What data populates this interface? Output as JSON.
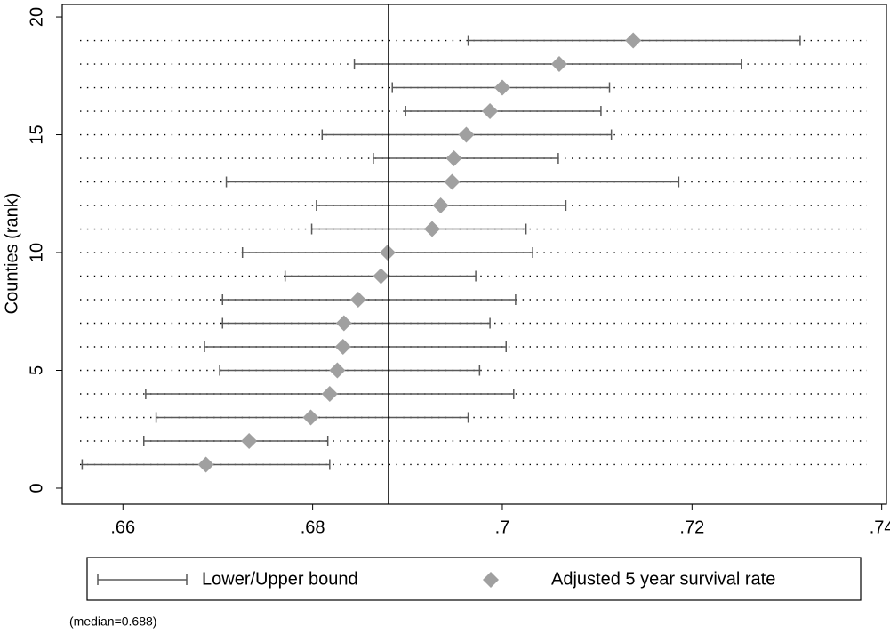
{
  "chart_data": {
    "type": "errorbar",
    "y_label": "Counties (rank)",
    "y": [
      1,
      2,
      3,
      4,
      5,
      6,
      7,
      8,
      9,
      10,
      11,
      12,
      13,
      14,
      15,
      16,
      17,
      18,
      19
    ],
    "series": [
      {
        "name": "Lower/Upper bound",
        "color": "#595959",
        "lower": [
          0.6557,
          0.6622,
          0.6635,
          0.6624,
          0.6702,
          0.6686,
          0.6705,
          0.6705,
          0.6771,
          0.6726,
          0.6799,
          0.6804,
          0.6709,
          0.6864,
          0.681,
          0.6898,
          0.6884,
          0.6844,
          0.6964
        ],
        "upper": [
          0.6818,
          0.6816,
          0.6964,
          0.7012,
          0.6976,
          0.7004,
          0.6987,
          0.7014,
          0.6972,
          0.7032,
          0.7025,
          0.7067,
          0.7186,
          0.7059,
          0.7115,
          0.7104,
          0.7113,
          0.7252,
          0.7314
        ]
      },
      {
        "name": "Adjusted 5 year survival rate",
        "color": "#a0a0a0",
        "values": [
          0.66875,
          0.6733,
          0.6798,
          0.6818,
          0.6826,
          0.6832,
          0.6833,
          0.6848,
          0.6872,
          0.6879,
          0.6926,
          0.6935,
          0.6947,
          0.6949,
          0.6962,
          0.6987,
          0.7,
          0.706,
          0.7138
        ]
      }
    ],
    "median": 0.688,
    "note": "(median=0.688)",
    "xlim": [
      0.6536,
      0.7405
    ],
    "xticks": [
      {
        "value": 0.66,
        "label": ".66"
      },
      {
        "value": 0.68,
        "label": ".68"
      },
      {
        "value": 0.7,
        "label": ".7"
      },
      {
        "value": 0.72,
        "label": ".72"
      },
      {
        "value": 0.74,
        "label": ".74"
      }
    ],
    "ylim": [
      -0.68,
      20.53
    ],
    "yticks": [
      0,
      5,
      10,
      15,
      20
    ]
  }
}
